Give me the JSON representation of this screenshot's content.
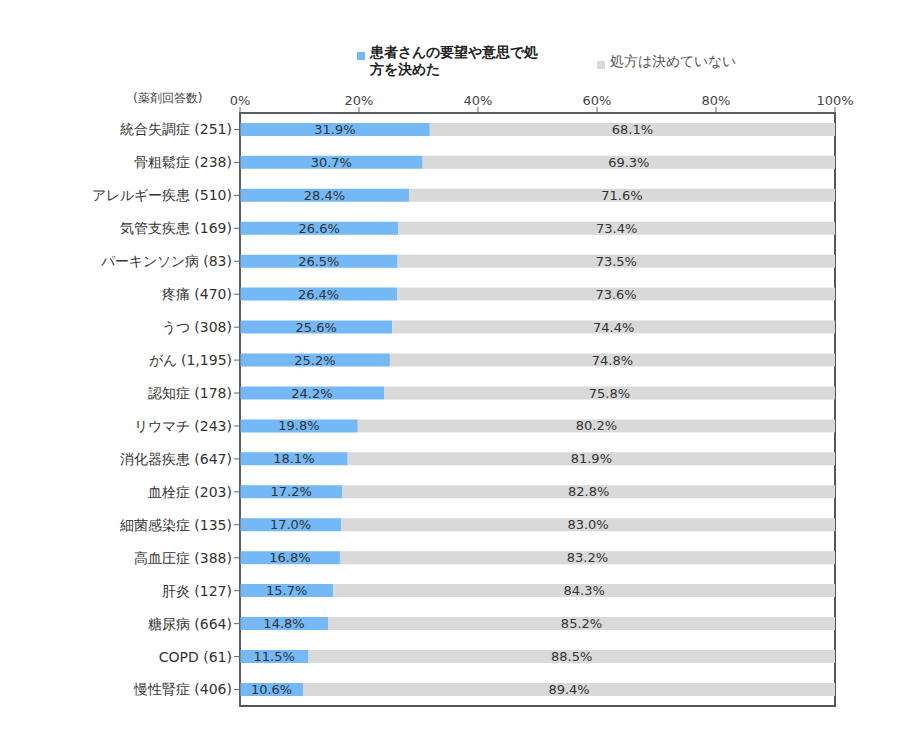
{
  "chart_data": {
    "type": "bar",
    "orientation": "horizontal",
    "stacked": true,
    "data_labels": true,
    "grid": false,
    "legend": "top",
    "ylabel": "(薬剤回答数)",
    "categories": [
      "統合失調症 (251)",
      "骨粗鬆症 (238)",
      "アレルギー疾患 (510)",
      "気管支疾患 (169)",
      "パーキンソン病 (83)",
      "疼痛 (470)",
      "うつ (308)",
      "がん (1,195)",
      "認知症 (178)",
      "リウマチ (243)",
      "消化器疾患 (647)",
      "血栓症 (203)",
      "細菌感染症 (135)",
      "高血圧症 (388)",
      "肝炎 (127)",
      "糖尿病 (664)",
      "COPD (61)",
      "慢性腎症 (406)"
    ],
    "series": [
      {
        "name": "患者さんの要望や意思で処方を決めた",
        "color": "#74b9f5",
        "values": [
          31.9,
          30.7,
          28.4,
          26.6,
          26.5,
          26.4,
          25.6,
          25.2,
          24.2,
          19.8,
          18.1,
          17.2,
          17.0,
          16.8,
          15.7,
          14.8,
          11.5,
          10.6
        ],
        "value_labels": [
          "31.9%",
          "30.7%",
          "28.4%",
          "26.6%",
          "26.5%",
          "26.4%",
          "25.6%",
          "25.2%",
          "24.2%",
          "19.8%",
          "18.1%",
          "17.2%",
          "17.0%",
          "16.8%",
          "15.7%",
          "14.8%",
          "11.5%",
          "10.6%"
        ]
      },
      {
        "name": "処方は決めていない",
        "color": "#d9d9d9",
        "values": [
          68.1,
          69.3,
          71.6,
          73.4,
          73.5,
          73.6,
          74.4,
          74.8,
          75.8,
          80.2,
          81.9,
          82.8,
          83.0,
          83.2,
          84.3,
          85.2,
          88.5,
          89.4
        ],
        "value_labels": [
          "68.1%",
          "69.3%",
          "71.6%",
          "73.4%",
          "73.5%",
          "73.6%",
          "74.4%",
          "74.8%",
          "75.8%",
          "80.2%",
          "81.9%",
          "82.8%",
          "83.0%",
          "83.2%",
          "84.3%",
          "85.2%",
          "88.5%",
          "89.4%"
        ]
      }
    ],
    "xlim": [
      0,
      100
    ],
    "xticks": [
      {
        "value": 0,
        "label": "0%"
      },
      {
        "value": 20,
        "label": "20%"
      },
      {
        "value": 40,
        "label": "40%"
      },
      {
        "value": 60,
        "label": "60%"
      },
      {
        "value": 80,
        "label": "80%"
      },
      {
        "value": 100,
        "label": "100%"
      }
    ]
  }
}
